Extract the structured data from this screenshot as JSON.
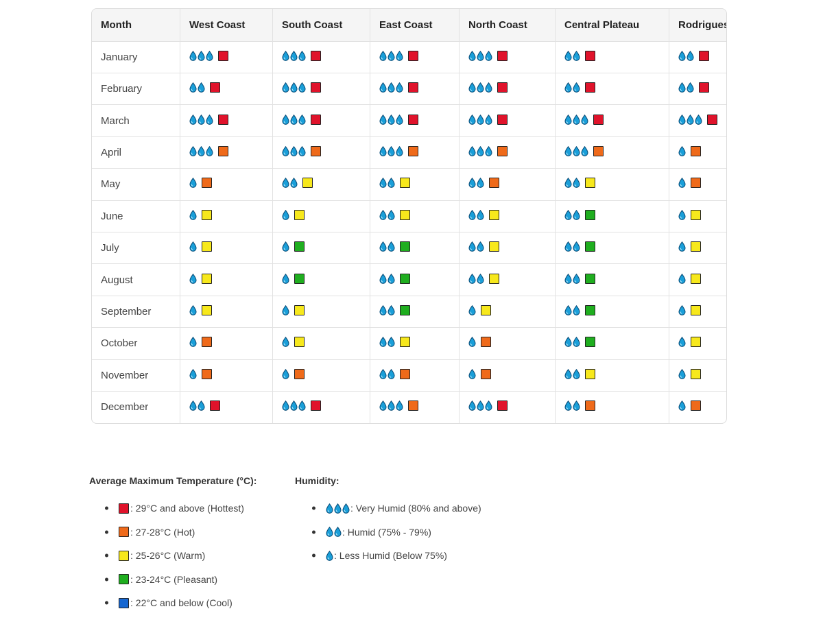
{
  "colors": {
    "red": "#e0132b",
    "orange": "#ef6a1a",
    "yellow": "#f7e81c",
    "green": "#1fae1f",
    "blue": "#1767d1",
    "drop": "#1a9fd9"
  },
  "icons": {
    "humidity": "water-drop-icon",
    "temperature": "colored-square-icon"
  },
  "table": {
    "headers": [
      "Month",
      "West Coast",
      "South Coast",
      "East Coast",
      "North Coast",
      "Central Plateau",
      "Rodrigues Island"
    ],
    "rows": [
      {
        "month": "January",
        "cells": [
          {
            "h": 3,
            "t": "red"
          },
          {
            "h": 3,
            "t": "red"
          },
          {
            "h": 3,
            "t": "red"
          },
          {
            "h": 3,
            "t": "red"
          },
          {
            "h": 2,
            "t": "red"
          },
          {
            "h": 2,
            "t": "red"
          }
        ]
      },
      {
        "month": "February",
        "cells": [
          {
            "h": 2,
            "t": "red"
          },
          {
            "h": 3,
            "t": "red"
          },
          {
            "h": 3,
            "t": "red"
          },
          {
            "h": 3,
            "t": "red"
          },
          {
            "h": 2,
            "t": "red"
          },
          {
            "h": 2,
            "t": "red"
          }
        ]
      },
      {
        "month": "March",
        "cells": [
          {
            "h": 3,
            "t": "red"
          },
          {
            "h": 3,
            "t": "red"
          },
          {
            "h": 3,
            "t": "red"
          },
          {
            "h": 3,
            "t": "red"
          },
          {
            "h": 3,
            "t": "red"
          },
          {
            "h": 3,
            "t": "red"
          }
        ]
      },
      {
        "month": "April",
        "cells": [
          {
            "h": 3,
            "t": "orange"
          },
          {
            "h": 3,
            "t": "orange"
          },
          {
            "h": 3,
            "t": "orange"
          },
          {
            "h": 3,
            "t": "orange"
          },
          {
            "h": 3,
            "t": "orange"
          },
          {
            "h": 1,
            "t": "orange"
          }
        ]
      },
      {
        "month": "May",
        "cells": [
          {
            "h": 1,
            "t": "orange"
          },
          {
            "h": 2,
            "t": "yellow"
          },
          {
            "h": 2,
            "t": "yellow"
          },
          {
            "h": 2,
            "t": "orange"
          },
          {
            "h": 2,
            "t": "yellow"
          },
          {
            "h": 1,
            "t": "orange"
          }
        ]
      },
      {
        "month": "June",
        "cells": [
          {
            "h": 1,
            "t": "yellow"
          },
          {
            "h": 1,
            "t": "yellow"
          },
          {
            "h": 2,
            "t": "yellow"
          },
          {
            "h": 2,
            "t": "yellow"
          },
          {
            "h": 2,
            "t": "green"
          },
          {
            "h": 1,
            "t": "yellow"
          }
        ]
      },
      {
        "month": "July",
        "cells": [
          {
            "h": 1,
            "t": "yellow"
          },
          {
            "h": 1,
            "t": "green"
          },
          {
            "h": 2,
            "t": "green"
          },
          {
            "h": 2,
            "t": "yellow"
          },
          {
            "h": 2,
            "t": "green"
          },
          {
            "h": 1,
            "t": "yellow"
          }
        ]
      },
      {
        "month": "August",
        "cells": [
          {
            "h": 1,
            "t": "yellow"
          },
          {
            "h": 1,
            "t": "green"
          },
          {
            "h": 2,
            "t": "green"
          },
          {
            "h": 2,
            "t": "yellow"
          },
          {
            "h": 2,
            "t": "green"
          },
          {
            "h": 1,
            "t": "yellow"
          }
        ]
      },
      {
        "month": "September",
        "cells": [
          {
            "h": 1,
            "t": "yellow"
          },
          {
            "h": 1,
            "t": "yellow"
          },
          {
            "h": 2,
            "t": "green"
          },
          {
            "h": 1,
            "t": "yellow"
          },
          {
            "h": 2,
            "t": "green"
          },
          {
            "h": 1,
            "t": "yellow"
          }
        ]
      },
      {
        "month": "October",
        "cells": [
          {
            "h": 1,
            "t": "orange"
          },
          {
            "h": 1,
            "t": "yellow"
          },
          {
            "h": 2,
            "t": "yellow"
          },
          {
            "h": 1,
            "t": "orange"
          },
          {
            "h": 2,
            "t": "green"
          },
          {
            "h": 1,
            "t": "yellow"
          }
        ]
      },
      {
        "month": "November",
        "cells": [
          {
            "h": 1,
            "t": "orange"
          },
          {
            "h": 1,
            "t": "orange"
          },
          {
            "h": 2,
            "t": "orange"
          },
          {
            "h": 1,
            "t": "orange"
          },
          {
            "h": 2,
            "t": "yellow"
          },
          {
            "h": 1,
            "t": "yellow"
          }
        ]
      },
      {
        "month": "December",
        "cells": [
          {
            "h": 2,
            "t": "red"
          },
          {
            "h": 3,
            "t": "red"
          },
          {
            "h": 3,
            "t": "orange"
          },
          {
            "h": 3,
            "t": "red"
          },
          {
            "h": 2,
            "t": "orange"
          },
          {
            "h": 1,
            "t": "orange"
          }
        ]
      }
    ]
  },
  "legend": {
    "temperature": {
      "title": "Average Maximum Temperature (°C):",
      "items": [
        {
          "color": "red",
          "label": ": 29°C and above (Hottest)"
        },
        {
          "color": "orange",
          "label": ": 27-28°C (Hot)"
        },
        {
          "color": "yellow",
          "label": ": 25-26°C (Warm)"
        },
        {
          "color": "green",
          "label": ": 23-24°C (Pleasant)"
        },
        {
          "color": "blue",
          "label": ": 22°C and below (Cool)"
        }
      ]
    },
    "humidity": {
      "title": "Humidity:",
      "items": [
        {
          "drops": 3,
          "label": ": Very Humid (80% and above)"
        },
        {
          "drops": 2,
          "label": ": Humid (75% - 79%)"
        },
        {
          "drops": 1,
          "label": ": Less Humid (Below 75%)"
        }
      ]
    }
  }
}
